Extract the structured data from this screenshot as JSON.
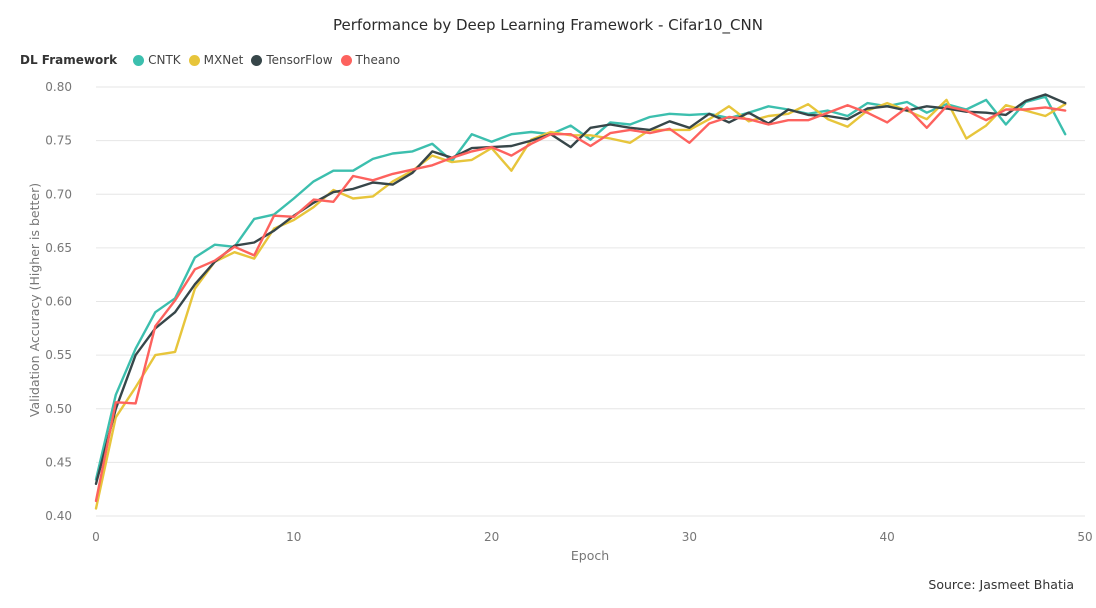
{
  "chart_data": {
    "type": "line",
    "title": "Performance by Deep Learning Framework - Cifar10_CNN",
    "xlabel": "Epoch",
    "ylabel": "Validation Accuracy (Higher is better)",
    "legend_title": "DL Framework",
    "legend_position": "top-left",
    "source": "Source: Jasmeet Bhatia",
    "xlim": [
      0,
      50
    ],
    "ylim": [
      0.4,
      0.8
    ],
    "x_ticks": [
      "0",
      "10",
      "20",
      "30",
      "40",
      "50"
    ],
    "y_ticks": [
      "0.80",
      "0.75",
      "0.70",
      "0.65",
      "0.60",
      "0.55",
      "0.50",
      "0.45",
      "0.40"
    ],
    "grid": true,
    "series": [
      {
        "name": "CNTK",
        "color": "#3cbfae",
        "values": [
          0.434,
          0.513,
          0.556,
          0.59,
          0.603,
          0.641,
          0.653,
          0.651,
          0.677,
          0.681,
          0.696,
          0.712,
          0.722,
          0.722,
          0.733,
          0.738,
          0.74,
          0.747,
          0.731,
          0.756,
          0.749,
          0.756,
          0.758,
          0.756,
          0.764,
          0.751,
          0.767,
          0.765,
          0.772,
          0.775,
          0.774,
          0.775,
          0.771,
          0.776,
          0.782,
          0.779,
          0.775,
          0.778,
          0.773,
          0.785,
          0.782,
          0.786,
          0.776,
          0.784,
          0.779,
          0.788,
          0.765,
          0.786,
          0.791,
          0.756
        ]
      },
      {
        "name": "MXNet",
        "color": "#e7c53b",
        "values": [
          0.407,
          0.492,
          0.52,
          0.55,
          0.553,
          0.612,
          0.637,
          0.646,
          0.64,
          0.668,
          0.676,
          0.688,
          0.704,
          0.696,
          0.698,
          0.712,
          0.722,
          0.736,
          0.73,
          0.732,
          0.743,
          0.722,
          0.751,
          0.758,
          0.755,
          0.755,
          0.752,
          0.748,
          0.76,
          0.76,
          0.76,
          0.77,
          0.782,
          0.768,
          0.773,
          0.775,
          0.784,
          0.77,
          0.763,
          0.778,
          0.785,
          0.778,
          0.77,
          0.788,
          0.752,
          0.764,
          0.783,
          0.778,
          0.773,
          0.784
        ]
      },
      {
        "name": "TensorFlow",
        "color": "#374649",
        "values": [
          0.43,
          0.5,
          0.55,
          0.575,
          0.59,
          0.616,
          0.637,
          0.652,
          0.655,
          0.666,
          0.68,
          0.692,
          0.702,
          0.705,
          0.711,
          0.709,
          0.72,
          0.74,
          0.734,
          0.743,
          0.744,
          0.745,
          0.75,
          0.756,
          0.744,
          0.762,
          0.765,
          0.762,
          0.76,
          0.768,
          0.762,
          0.775,
          0.767,
          0.776,
          0.766,
          0.779,
          0.774,
          0.773,
          0.77,
          0.78,
          0.782,
          0.778,
          0.782,
          0.78,
          0.777,
          0.776,
          0.774,
          0.787,
          0.793,
          0.785
        ]
      },
      {
        "name": "Theano",
        "color": "#fd625e",
        "values": [
          0.414,
          0.506,
          0.505,
          0.577,
          0.601,
          0.63,
          0.638,
          0.651,
          0.643,
          0.68,
          0.679,
          0.695,
          0.693,
          0.717,
          0.713,
          0.719,
          0.723,
          0.727,
          0.734,
          0.74,
          0.744,
          0.736,
          0.747,
          0.756,
          0.756,
          0.745,
          0.757,
          0.76,
          0.757,
          0.761,
          0.748,
          0.766,
          0.772,
          0.77,
          0.765,
          0.769,
          0.769,
          0.776,
          0.783,
          0.776,
          0.767,
          0.781,
          0.762,
          0.782,
          0.778,
          0.769,
          0.779,
          0.779,
          0.781,
          0.778
        ]
      }
    ]
  }
}
